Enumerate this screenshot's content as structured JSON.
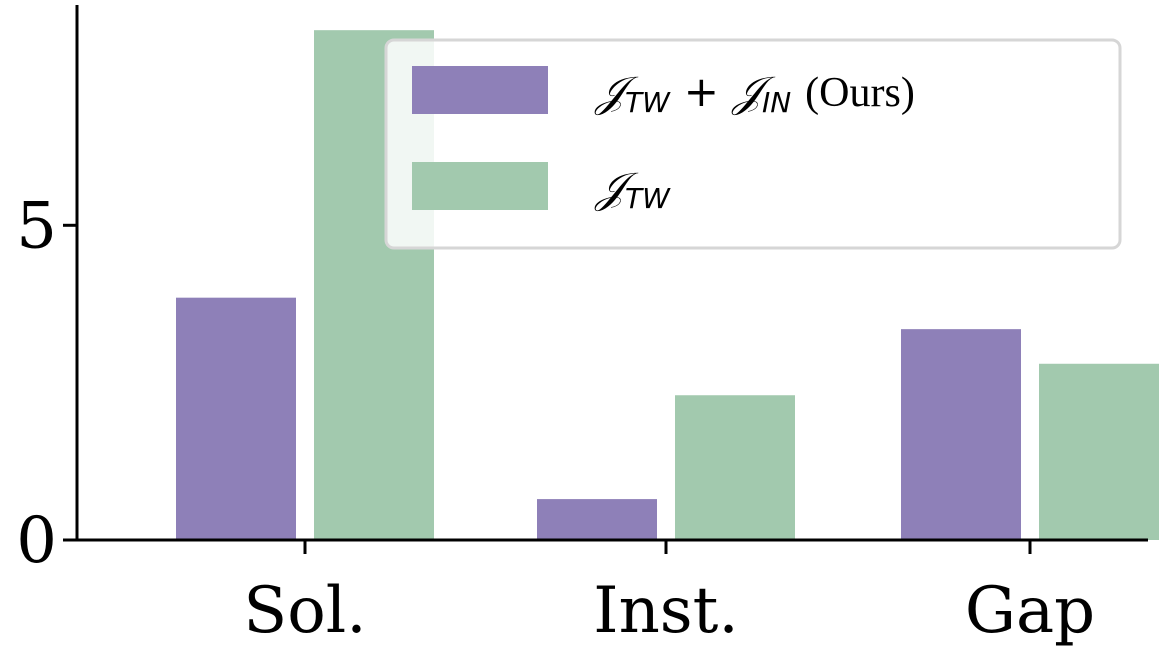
{
  "chart_data": {
    "type": "bar",
    "categories": [
      "Sol.",
      "Inst.",
      "Gap"
    ],
    "series": [
      {
        "name": "𝒥TW + 𝒥IN (Ours)",
        "color": "#8e80b8",
        "values": [
          3.85,
          0.65,
          3.35
        ]
      },
      {
        "name": "𝒥TW",
        "color": "#a2c9ae",
        "values": [
          8.1,
          2.3,
          2.8
        ]
      }
    ],
    "yticks": [
      0,
      5
    ],
    "ylim": [
      0,
      8.5
    ],
    "title": "",
    "xlabel": "",
    "ylabel": "",
    "legend": {
      "placement": "top-right",
      "entries": [
        {
          "script": "𝒥",
          "sub": "TW",
          "plus": "+",
          "script2": "𝒥",
          "sub2": "IN",
          "suffix": "(Ours)"
        },
        {
          "script": "𝒥",
          "sub": "TW"
        }
      ]
    }
  }
}
